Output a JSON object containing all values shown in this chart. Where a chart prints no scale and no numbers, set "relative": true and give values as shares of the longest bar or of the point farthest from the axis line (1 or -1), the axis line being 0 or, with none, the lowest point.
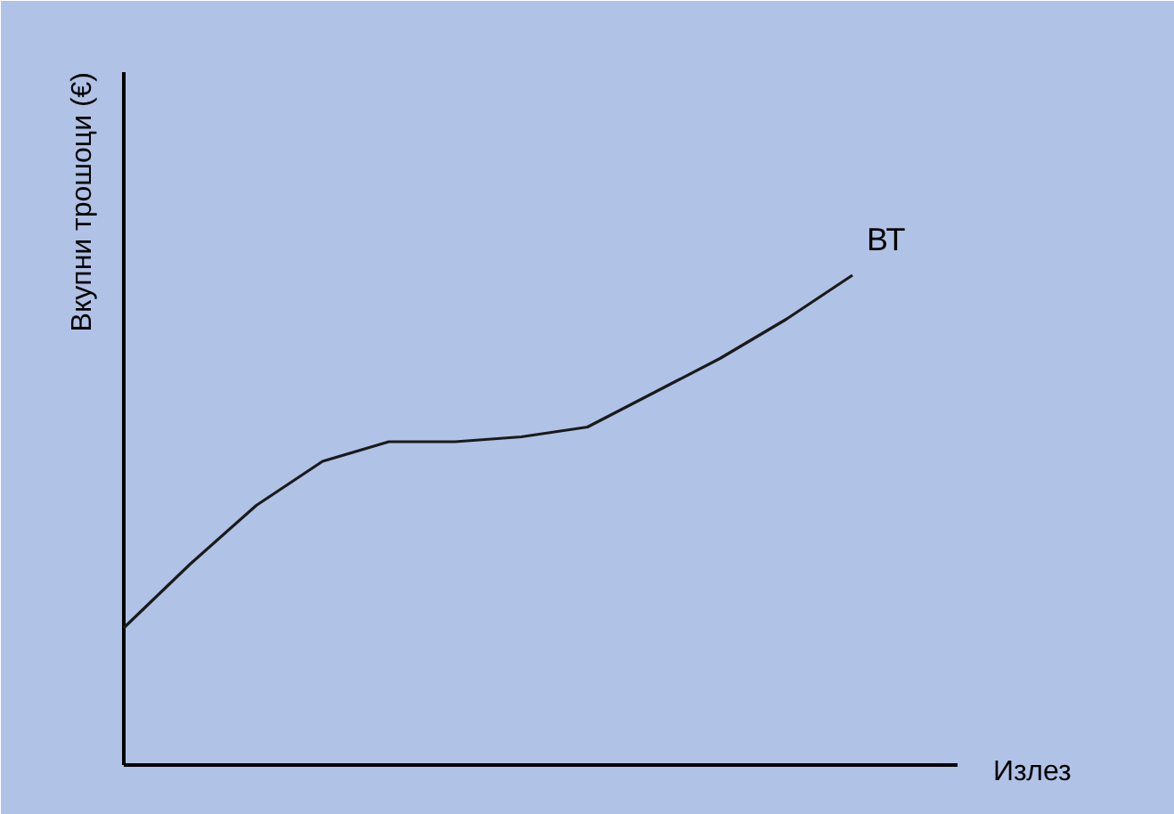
{
  "chart_data": {
    "type": "line",
    "relative": true,
    "ylabel": "Вкупни трошоци (€)",
    "xlabel": "Излез",
    "categories": [
      null,
      null,
      null,
      null,
      null,
      null,
      null,
      null,
      null,
      null,
      null,
      null
    ],
    "series": [
      {
        "name": "ВТ",
        "color": "#1a1a1a",
        "values": [
          0.28,
          0.41,
          0.53,
          0.62,
          0.66,
          0.66,
          0.67,
          0.69,
          0.76,
          0.83,
          0.91,
          1.0
        ]
      }
    ],
    "marker": "none",
    "line_style": "solid",
    "grid": false,
    "legend": false
  }
}
